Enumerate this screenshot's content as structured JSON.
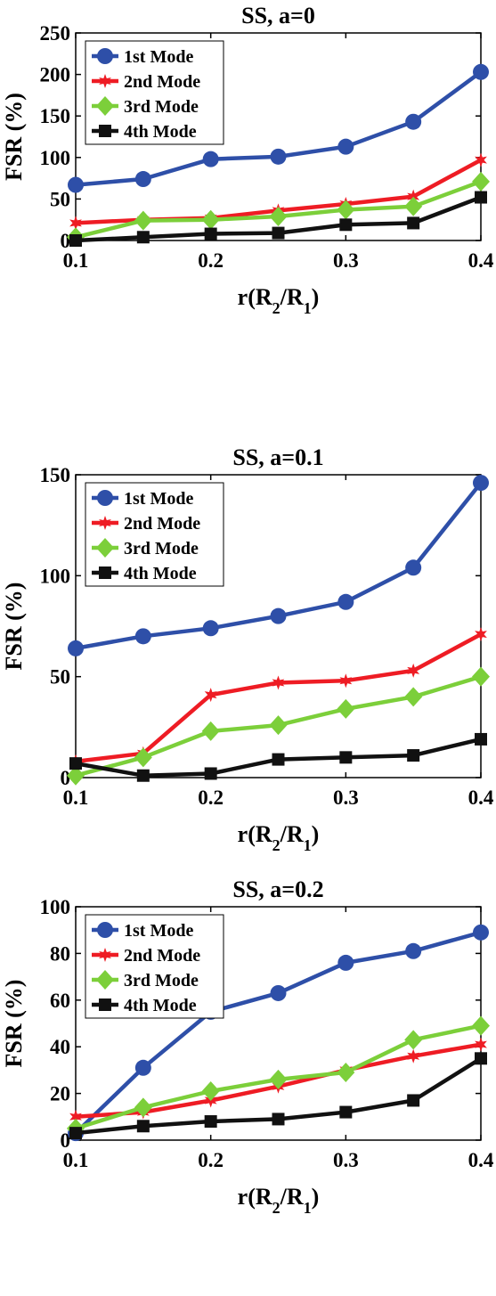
{
  "chart_data": [
    {
      "type": "line",
      "title": "SS, a=0",
      "xlabel": "r(R_2/R_1)",
      "ylabel": "FSR (%)",
      "xlim": [
        0.1,
        0.4
      ],
      "ylim": [
        0,
        250
      ],
      "xticks": [
        "0.1",
        "0.2",
        "0.3",
        "0.4"
      ],
      "yticks": [
        "0",
        "50",
        "100",
        "150",
        "200",
        "250"
      ],
      "legend_position": "top-left",
      "x": [
        0.1,
        0.15,
        0.2,
        0.25,
        0.3,
        0.35,
        0.4
      ],
      "series": [
        {
          "name": "1st Mode",
          "color": "#2e4fa8",
          "marker": "circle",
          "values": [
            67,
            74,
            98,
            101,
            113,
            143,
            203
          ]
        },
        {
          "name": "2nd Mode",
          "color": "#ee1c24",
          "marker": "star",
          "values": [
            21,
            25,
            27,
            36,
            44,
            53,
            97
          ]
        },
        {
          "name": "3rd Mode",
          "color": "#7ccf3a",
          "marker": "diamond",
          "values": [
            4,
            24,
            25,
            29,
            37,
            41,
            71
          ]
        },
        {
          "name": "4th Mode",
          "color": "#111111",
          "marker": "square",
          "values": [
            0,
            4,
            8,
            9,
            19,
            21,
            52
          ]
        }
      ]
    },
    {
      "type": "line",
      "title": "SS, a=0.1",
      "xlabel": "r(R_2/R_1)",
      "ylabel": "FSR (%)",
      "xlim": [
        0.1,
        0.4
      ],
      "ylim": [
        0,
        150
      ],
      "xticks": [
        "0.1",
        "0.2",
        "0.3",
        "0.4"
      ],
      "yticks": [
        "0",
        "50",
        "100",
        "150"
      ],
      "legend_position": "top-left",
      "x": [
        0.1,
        0.15,
        0.2,
        0.25,
        0.3,
        0.35,
        0.4
      ],
      "series": [
        {
          "name": "1st Mode",
          "color": "#2e4fa8",
          "marker": "circle",
          "values": [
            64,
            70,
            74,
            80,
            87,
            104,
            146
          ]
        },
        {
          "name": "2nd Mode",
          "color": "#ee1c24",
          "marker": "star",
          "values": [
            8,
            12,
            41,
            47,
            48,
            53,
            71
          ]
        },
        {
          "name": "3rd Mode",
          "color": "#7ccf3a",
          "marker": "diamond",
          "values": [
            1,
            10,
            23,
            26,
            34,
            40,
            50
          ]
        },
        {
          "name": "4th Mode",
          "color": "#111111",
          "marker": "square",
          "values": [
            7,
            1,
            2,
            9,
            10,
            11,
            19
          ]
        }
      ]
    },
    {
      "type": "line",
      "title": "SS, a=0.2",
      "xlabel": "r(R_2/R_1)",
      "ylabel": "FSR (%)",
      "xlim": [
        0.1,
        0.4
      ],
      "ylim": [
        0,
        100
      ],
      "xticks": [
        "0.1",
        "0.2",
        "0.3",
        "0.4"
      ],
      "yticks": [
        "0",
        "20",
        "40",
        "60",
        "80",
        "100"
      ],
      "legend_position": "top-left",
      "x": [
        0.1,
        0.15,
        0.2,
        0.25,
        0.3,
        0.35,
        0.4
      ],
      "series": [
        {
          "name": "1st Mode",
          "color": "#2e4fa8",
          "marker": "circle",
          "values": [
            3,
            31,
            55,
            63,
            76,
            81,
            89
          ]
        },
        {
          "name": "2nd Mode",
          "color": "#ee1c24",
          "marker": "star",
          "values": [
            10,
            12,
            17,
            23,
            30,
            36,
            41
          ]
        },
        {
          "name": "3rd Mode",
          "color": "#7ccf3a",
          "marker": "diamond",
          "values": [
            5,
            14,
            21,
            26,
            29,
            43,
            49
          ]
        },
        {
          "name": "4th Mode",
          "color": "#111111",
          "marker": "square",
          "values": [
            3,
            6,
            8,
            9,
            12,
            17,
            35
          ]
        }
      ]
    }
  ]
}
